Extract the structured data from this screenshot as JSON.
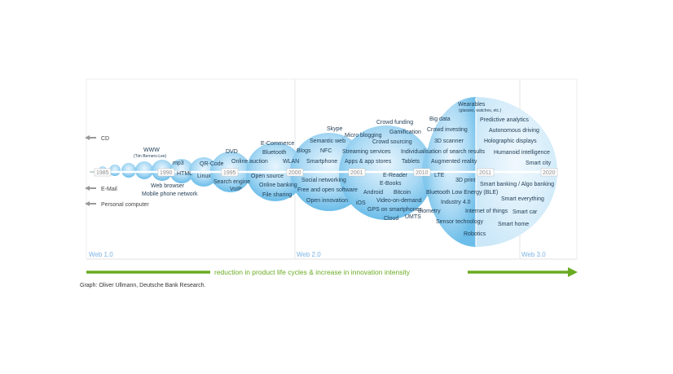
{
  "left_labels": [
    "CD",
    "E-Mail",
    "Personal computer"
  ],
  "years": [
    "1985",
    "1990",
    "1995",
    "2000",
    "2001",
    "2010",
    "2011",
    "2020"
  ],
  "eras": [
    "Web 1.0",
    "Web 2.0",
    "Web 3.0"
  ],
  "arrow_caption": "reduction in product life cycles & increase in innovation intensity",
  "credit": "Graph: Oliver Ullmann, Deutsche Bank Research.",
  "terms": {
    "www": "WWW",
    "www_sub": "(Tim Berners-Lee)",
    "web_browser": "Web browser",
    "mobile_network": "Mobile phone network",
    "mp3": "mp3",
    "html": "HTML",
    "qr": "QR-Code",
    "linux": "Linux",
    "search": "Search engine",
    "voip": "VoIP",
    "dvd": "DVD",
    "auction": "Online auction",
    "ecommerce": "E-Commerce",
    "bluetooth": "Bluetooth",
    "wlan": "WLAN",
    "opensource": "Open source",
    "banking": "Online banking",
    "filesharing": "File sharing",
    "skype": "Skype",
    "semantic": "Semantic web",
    "blogs": "Blogs",
    "nfc": "NFC",
    "smartphone": "Smartphone",
    "social": "Social networking",
    "foss": "Free and open software",
    "openinnov": "Open innovation",
    "micro": "Micro blogging",
    "streaming": "Streaming services",
    "apps": "Apps & app stores",
    "ios": "iOS",
    "android": "Android",
    "gps": "GPS on smartphones",
    "crowdfunding": "Crowd funding",
    "gamification": "Gamification",
    "crowdsourcing": "Crowd sourcing",
    "indiv": "Individualisation of search results",
    "tablets": "Tablets",
    "ereader": "E-Reader",
    "ebooks": "E-Books",
    "bitcoin": "Bitcoin",
    "vod": "Video-on-demand",
    "cloud": "Cloud",
    "umts": "UMTS",
    "wearables": "Wearables",
    "wearables_sub": "(glasses, watches, etc.)",
    "bigdata": "Big data",
    "crowdinvest": "Crowd investing",
    "scanner3d": "3D scanner",
    "ar": "Augmented reality",
    "lte": "LTE",
    "print3d": "3D print",
    "ble": "Bluetooth Low Energy (BLE)",
    "industry": "Industry 4.0",
    "biometry": "Biometry",
    "iot": "Internet of things",
    "sensor": "Sensor technology",
    "robotics": "Robotics",
    "predictive": "Predictive analytics",
    "autodrive": "Autonomous driving",
    "holographic": "Holographic displays",
    "humanoid": "Humanoid intelligence",
    "smartcity": "Smart city",
    "algobank": "Smart banking / Algo banking",
    "everything": "Smart everything",
    "smartcar": "Smart car",
    "smarthome": "Smart home"
  }
}
